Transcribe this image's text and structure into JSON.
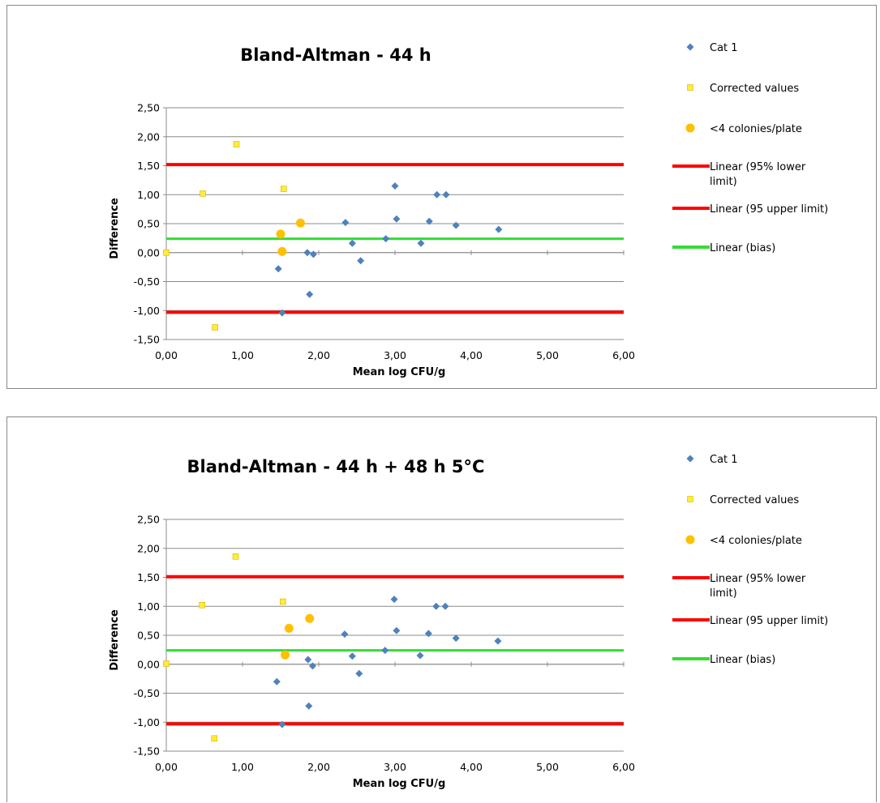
{
  "chart_data": [
    {
      "type": "scatter",
      "title": "Bland-Altman  - 44 h",
      "xlabel": "Mean log CFU/g",
      "ylabel": "Difference",
      "xlim": [
        0,
        6
      ],
      "ylim": [
        -1.5,
        2.5
      ],
      "x_ticks": [
        "0,00",
        "1,00",
        "2,00",
        "3,00",
        "4,00",
        "5,00",
        "6,00"
      ],
      "y_ticks": [
        "2,50",
        "2,00",
        "1,50",
        "1,00",
        "0,50",
        "0,00",
        "-0,50",
        "-1,00",
        "-1,50"
      ],
      "grid": true,
      "legend_position": "right",
      "series": [
        {
          "name": "Cat 1",
          "marker": "diamond",
          "color": "#4f81bd",
          "points": [
            {
              "x": 1.47,
              "y": -0.28
            },
            {
              "x": 1.52,
              "y": -1.04
            },
            {
              "x": 1.85,
              "y": 0.0
            },
            {
              "x": 1.88,
              "y": -0.72
            },
            {
              "x": 1.93,
              "y": -0.03
            },
            {
              "x": 2.35,
              "y": 0.52
            },
            {
              "x": 2.44,
              "y": 0.16
            },
            {
              "x": 2.55,
              "y": -0.14
            },
            {
              "x": 2.88,
              "y": 0.24
            },
            {
              "x": 3.0,
              "y": 1.15
            },
            {
              "x": 3.02,
              "y": 0.58
            },
            {
              "x": 3.34,
              "y": 0.16
            },
            {
              "x": 3.45,
              "y": 0.54
            },
            {
              "x": 3.55,
              "y": 1.0
            },
            {
              "x": 3.67,
              "y": 1.0
            },
            {
              "x": 3.8,
              "y": 0.47
            },
            {
              "x": 4.36,
              "y": 0.4
            }
          ]
        },
        {
          "name": "Corrected values",
          "marker": "square",
          "color": "#ffeb3b",
          "points": [
            {
              "x": 0.0,
              "y": 0.0
            },
            {
              "x": 0.48,
              "y": 1.02
            },
            {
              "x": 0.64,
              "y": -1.29
            },
            {
              "x": 0.92,
              "y": 1.87
            },
            {
              "x": 1.54,
              "y": 1.1
            }
          ]
        },
        {
          "name": "<4 colonies/plate",
          "marker": "circle",
          "color": "#ffc000",
          "points": [
            {
              "x": 1.5,
              "y": 0.32
            },
            {
              "x": 1.52,
              "y": 0.02
            },
            {
              "x": 1.76,
              "y": 0.51
            }
          ]
        }
      ],
      "reference_lines": [
        {
          "name": "Linear (95% lower limit)",
          "y": 1.52,
          "color": "#ff0000",
          "width": 4
        },
        {
          "name": "Linear (95 upper limit)",
          "y": -1.03,
          "color": "#ff0000",
          "width": 4
        },
        {
          "name": "Linear (bias)",
          "y": 0.24,
          "color": "#33dd33",
          "width": 3
        }
      ],
      "legend": [
        {
          "label": "Cat 1",
          "kind": "diamond",
          "color": "#4f81bd"
        },
        {
          "label": "Corrected values",
          "kind": "square",
          "color": "#ffeb3b"
        },
        {
          "label": "<4 colonies/plate",
          "kind": "circle",
          "color": "#ffc000"
        },
        {
          "label": [
            "Linear (95% lower",
            "limit)"
          ],
          "kind": "line",
          "color": "#ff0000"
        },
        {
          "label": [
            "Linear (95 upper limit)"
          ],
          "kind": "line",
          "color": "#ff0000"
        },
        {
          "label": [
            "Linear (bias)"
          ],
          "kind": "line",
          "color": "#33dd33"
        }
      ]
    },
    {
      "type": "scatter",
      "title": "Bland-Altman  - 44 h + 48 h 5°C",
      "xlabel": "Mean log CFU/g",
      "ylabel": "Difference",
      "xlim": [
        0,
        6
      ],
      "ylim": [
        -1.5,
        2.5
      ],
      "x_ticks": [
        "0,00",
        "1,00",
        "2,00",
        "3,00",
        "4,00",
        "5,00",
        "6,00"
      ],
      "y_ticks": [
        "2,50",
        "2,00",
        "1,50",
        "1,00",
        "0,50",
        "0,00",
        "-0,50",
        "-1,00",
        "-1,50"
      ],
      "grid": true,
      "legend_position": "right",
      "series": [
        {
          "name": "Cat 1",
          "marker": "diamond",
          "color": "#4f81bd",
          "points": [
            {
              "x": 1.45,
              "y": -0.3
            },
            {
              "x": 1.52,
              "y": -1.04
            },
            {
              "x": 1.86,
              "y": 0.08
            },
            {
              "x": 1.87,
              "y": -0.72
            },
            {
              "x": 1.92,
              "y": -0.03
            },
            {
              "x": 2.34,
              "y": 0.52
            },
            {
              "x": 2.44,
              "y": 0.14
            },
            {
              "x": 2.53,
              "y": -0.16
            },
            {
              "x": 2.87,
              "y": 0.24
            },
            {
              "x": 2.99,
              "y": 1.12
            },
            {
              "x": 3.02,
              "y": 0.58
            },
            {
              "x": 3.33,
              "y": 0.15
            },
            {
              "x": 3.44,
              "y": 0.53
            },
            {
              "x": 3.54,
              "y": 1.0
            },
            {
              "x": 3.66,
              "y": 1.0
            },
            {
              "x": 3.8,
              "y": 0.45
            },
            {
              "x": 4.35,
              "y": 0.4
            }
          ]
        },
        {
          "name": "Corrected values",
          "marker": "square",
          "color": "#ffeb3b",
          "points": [
            {
              "x": 0.0,
              "y": 0.01
            },
            {
              "x": 0.47,
              "y": 1.02
            },
            {
              "x": 0.63,
              "y": -1.28
            },
            {
              "x": 0.91,
              "y": 1.86
            },
            {
              "x": 1.53,
              "y": 1.08
            }
          ]
        },
        {
          "name": "<4 colonies/plate",
          "marker": "circle",
          "color": "#ffc000",
          "points": [
            {
              "x": 1.56,
              "y": 0.16
            },
            {
              "x": 1.61,
              "y": 0.62
            },
            {
              "x": 1.88,
              "y": 0.79
            }
          ]
        }
      ],
      "reference_lines": [
        {
          "name": "Linear (95% lower limit)",
          "y": 1.51,
          "color": "#ff0000",
          "width": 4
        },
        {
          "name": "Linear (95 upper limit)",
          "y": -1.03,
          "color": "#ff0000",
          "width": 4
        },
        {
          "name": "Linear (bias)",
          "y": 0.24,
          "color": "#33dd33",
          "width": 3
        }
      ],
      "legend": [
        {
          "label": "Cat 1",
          "kind": "diamond",
          "color": "#4f81bd"
        },
        {
          "label": "Corrected values",
          "kind": "square",
          "color": "#ffeb3b"
        },
        {
          "label": "<4 colonies/plate",
          "kind": "circle",
          "color": "#ffc000"
        },
        {
          "label": [
            "Linear (95% lower",
            "limit)"
          ],
          "kind": "line",
          "color": "#ff0000"
        },
        {
          "label": [
            "Linear (95 upper limit)"
          ],
          "kind": "line",
          "color": "#ff0000"
        },
        {
          "label": [
            "Linear (bias)"
          ],
          "kind": "line",
          "color": "#33dd33"
        }
      ]
    }
  ]
}
